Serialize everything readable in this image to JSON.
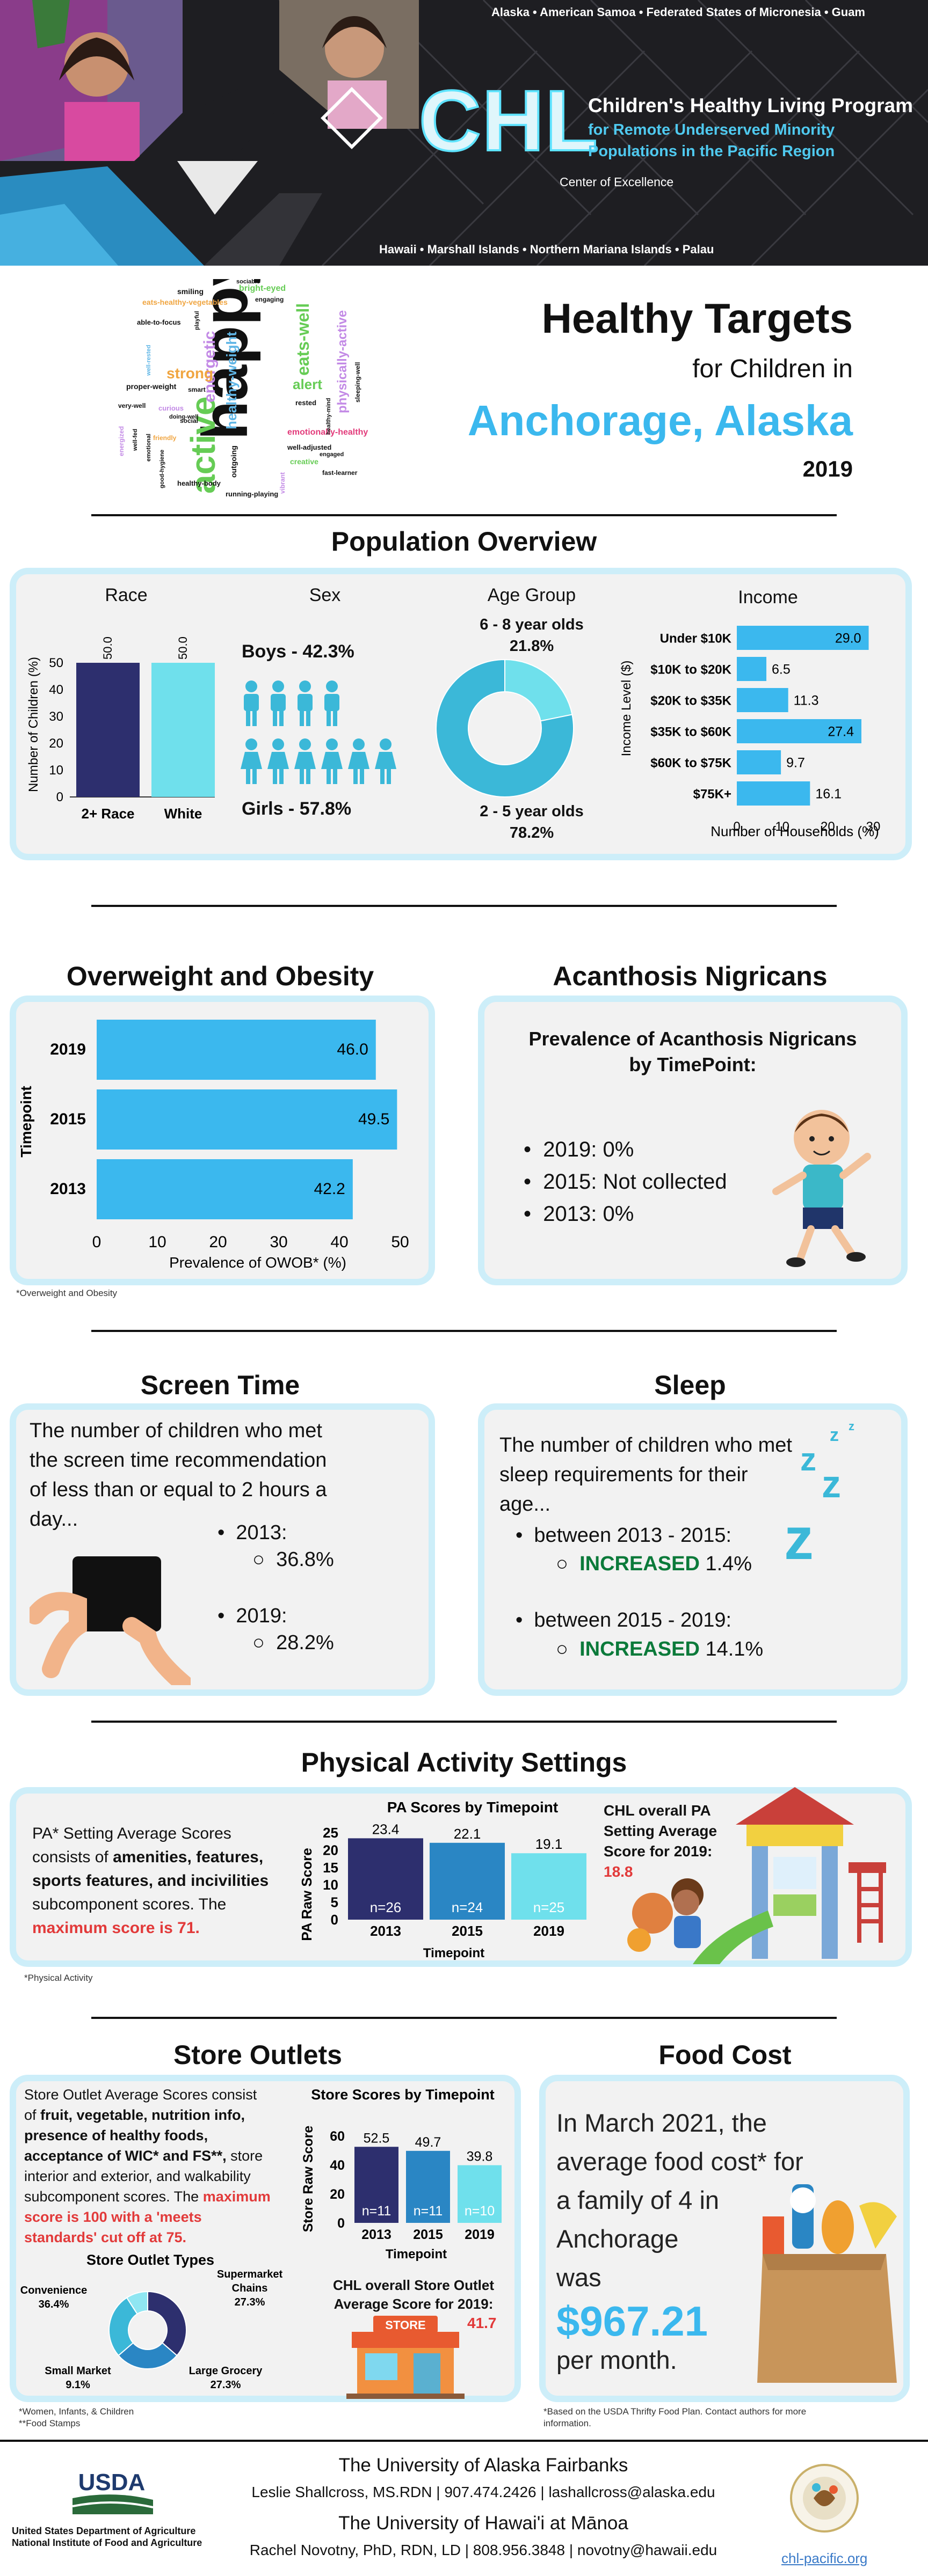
{
  "header": {
    "top_regions": "Alaska • American Samoa • Federated States of Micronesia • Guam",
    "logo": "CHL",
    "program_name": "Children's Healthy Living Program",
    "program_sub1": "for Remote Underserved Minority",
    "program_sub2": "Populations in the Pacific Region",
    "coe": "Center of Excellence",
    "bottom_regions": "Hawaii • Marshall Islands • Northern Mariana Islands • Palau"
  },
  "title": {
    "main": "Healthy Targets",
    "sub": "for Children in",
    "place": "Anchorage, Alaska",
    "year": "2019"
  },
  "wordcloud": [
    "happy",
    "active",
    "energetic",
    "healthy-weight",
    "strong",
    "alert",
    "eats-well",
    "physically-active",
    "emotionally-healthy",
    "smiling",
    "bright-eyed",
    "eats-healthy-vegetables",
    "able-to-focus",
    "proper-weight",
    "very-well",
    "rested",
    "creative",
    "healthy-body",
    "running-playing",
    "sociable",
    "engaging",
    "outgoing",
    "well-adjusted",
    "fast-learner",
    "good-hygiene",
    "smart",
    "sleeping-well",
    "social",
    "playful",
    "curious",
    "energized",
    "doing-well",
    "well-fed",
    "engaged",
    "friendly",
    "well-rested",
    "emotional",
    "healthy-mind",
    "vibrant"
  ],
  "population": {
    "heading": "Population Overview",
    "race_title": "Race",
    "sex_title": "Sex",
    "age_title": "Age Group",
    "income_title": "Income",
    "boys": "Boys - 42.3%",
    "girls": "Girls - 57.8%",
    "age_a_label": "6 - 8 year olds",
    "age_a_val": "21.8%",
    "age_b_label": "2 - 5 year olds",
    "age_b_val": "78.2%"
  },
  "chart_data": [
    {
      "type": "bar",
      "id": "race",
      "ylabel": "Number of Children (%)",
      "categories": [
        "2+ Race",
        "White"
      ],
      "values": [
        50.0,
        50.0
      ],
      "ylim": [
        0,
        50
      ],
      "yticks": [
        0,
        10,
        20,
        30,
        40,
        50
      ],
      "colors": [
        "#2d2f6e",
        "#6fe0ec"
      ]
    },
    {
      "type": "pie",
      "id": "age",
      "categories": [
        "6 - 8 year olds",
        "2 - 5 year olds"
      ],
      "values": [
        21.8,
        78.2
      ],
      "colors": [
        "#6fe0ec",
        "#3bb8d8"
      ]
    },
    {
      "type": "bar",
      "id": "income",
      "orientation": "horizontal",
      "ylabel": "Income Level ($)",
      "xlabel": "Number of Households (%)",
      "categories": [
        "Under $10K",
        "$10K to $20K",
        "$20K to $35K",
        "$35K to $60K",
        "$60K to $75K",
        "$75K+"
      ],
      "values": [
        29.0,
        6.5,
        11.3,
        27.4,
        9.7,
        16.1
      ],
      "xlim": [
        0,
        30
      ],
      "xticks": [
        0,
        10,
        20,
        30
      ],
      "color": "#3bb8ee"
    },
    {
      "type": "bar",
      "id": "owob",
      "orientation": "horizontal",
      "ylabel": "Timepoint",
      "xlabel": "Prevalence of OWOB* (%)",
      "categories": [
        "2019",
        "2015",
        "2013"
      ],
      "values": [
        46.0,
        49.5,
        42.2
      ],
      "xlim": [
        0,
        50
      ],
      "xticks": [
        0,
        10,
        20,
        30,
        40,
        50
      ],
      "color": "#3bb8ee"
    },
    {
      "type": "bar",
      "id": "pa",
      "title": "PA Scores by Timepoint",
      "ylabel": "PA Raw Score",
      "xlabel": "Timepoint",
      "categories": [
        "2013",
        "2015",
        "2019"
      ],
      "values": [
        23.4,
        22.1,
        19.1
      ],
      "n": [
        "n=26",
        "n=24",
        "n=25"
      ],
      "ylim": [
        0,
        25
      ],
      "yticks": [
        0,
        5,
        10,
        15,
        20,
        25
      ],
      "colors": [
        "#2d2f6e",
        "#2a86c4",
        "#6fe0ec"
      ]
    },
    {
      "type": "bar",
      "id": "store",
      "title": "Store Scores by Timepoint",
      "ylabel": "Store Raw Score",
      "xlabel": "Timepoint",
      "categories": [
        "2013",
        "2015",
        "2019"
      ],
      "values": [
        52.5,
        49.7,
        39.8
      ],
      "n": [
        "n=11",
        "n=11",
        "n=10"
      ],
      "ylim": [
        0,
        60
      ],
      "yticks": [
        0,
        20,
        40,
        60
      ],
      "colors": [
        "#2d2f6e",
        "#2a86c4",
        "#6fe0ec"
      ]
    },
    {
      "type": "pie",
      "id": "storetypes",
      "title": "Store Outlet Types",
      "categories": [
        "Convenience",
        "Supermarket Chains",
        "Large Grocery",
        "Small Market"
      ],
      "values": [
        36.4,
        27.3,
        27.3,
        9.1
      ],
      "colors": [
        "#2d2f6e",
        "#2a86c4",
        "#3bb8d8",
        "#8fe6f2"
      ]
    }
  ],
  "owob": {
    "heading": "Overweight and Obesity",
    "footnote": "*Overweight and Obesity"
  },
  "acanthosis": {
    "heading": "Acanthosis Nigricans",
    "card_title1": "Prevalence of Acanthosis Nigricans",
    "card_title2": "by TimePoint:",
    "items": [
      "2019: 0%",
      "2015: Not collected",
      "2013: 0%"
    ]
  },
  "screen": {
    "heading": "Screen Time",
    "l1": "The number of children who met",
    "l2": "the screen time recommendation",
    "l3": "of less than or equal to 2 hours a",
    "l4": "day...",
    "y1": "2013:",
    "v1": "36.8%",
    "y2": "2019:",
    "v2": "28.2%"
  },
  "sleep": {
    "heading": "Sleep",
    "l1": "The number of children who met",
    "l2": "sleep requirements for their",
    "l3": "age...",
    "p1": "between 2013 - 2015:",
    "inc": "INCREASED",
    "v1": "1.4%",
    "p2": "between 2015 - 2019:",
    "v2": "14.1%"
  },
  "pa": {
    "heading": "Physical Activity Settings",
    "l1": "PA* Setting Average Scores",
    "l2": "consists of",
    "b1": "amenities, features,",
    "b2": "sports features, and incivilities",
    "l3": "subcomponent scores. The",
    "max": "maximum score is 71.",
    "side1": "CHL overall PA",
    "side2": "Setting Average",
    "side3": "Score for 2019:",
    "side_val": "18.8",
    "footnote": "*Physical Activity"
  },
  "store": {
    "heading": "Store Outlets",
    "l1": "Store Outlet Average Scores consist",
    "l2": "of",
    "b1": "fruit, vegetable, nutrition info,",
    "b2": "presence of healthy foods,",
    "b3": "acceptance of WIC* and FS**,",
    "b3b": "store",
    "b4": "interior and exterior, and walkability",
    "l3": "subcomponent scores. The",
    "max1": "maximum",
    "max2": "score is 100 with a 'meets",
    "max3": "standards' cut off at 75.",
    "ov1": "CHL overall Store Outlet",
    "ov2": "Average Score for 2019:",
    "ov_val": "41.7",
    "sign": "STORE",
    "fn1": "*Women, Infants, & Children",
    "fn2": "**Food Stamps",
    "pct_conv": "36.4%",
    "pct_super": "27.3%",
    "pct_large": "27.3%",
    "pct_small": "9.1%",
    "lbl_super1": "Supermarket",
    "lbl_super2": "Chains"
  },
  "food": {
    "heading": "Food Cost",
    "l1": "In March 2021, the",
    "l2": "average food cost* for",
    "l3": "a family of 4 in",
    "l4": "Anchorage",
    "l5": "was",
    "amount": "$967.21",
    "l6": "per month.",
    "fn1": "*Based on the USDA Thrifty Food Plan. Contact authors for more",
    "fn2": "information."
  },
  "footer": {
    "usda": "USDA",
    "usda1": "United States Department of Agriculture",
    "usda2": "National Institute of Food and Agriculture",
    "uaf": "The University of Alaska Fairbanks",
    "uaf_contact": "Leslie Shallcross, MS.RDN | 907.474.2426 | lashallcross@alaska.edu",
    "uh": "The University of Hawai'i at Mānoa",
    "uh_contact": "Rachel Novotny, PhD, RDN, LD | 808.956.3848 | novotny@hawaii.edu",
    "site": "chl-pacific.org",
    "seal": "Children's Healthy Living Program"
  }
}
